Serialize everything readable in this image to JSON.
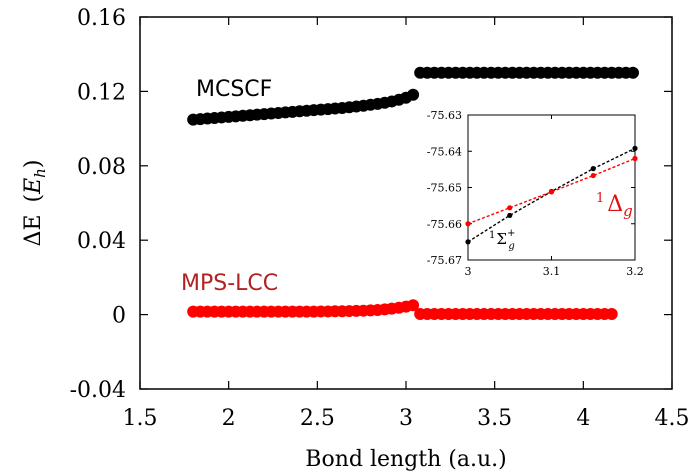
{
  "chart_data": [
    {
      "type": "scatter",
      "xlabel": "Bond length (a.u.)",
      "ylabel_text": "ΔE",
      "ylabel_unit_prefix": "(",
      "ylabel_unit": "E",
      "ylabel_unit_sub": "h",
      "ylabel_unit_suffix": ")",
      "xlim": [
        1.5,
        4.5
      ],
      "ylim": [
        -0.04,
        0.16
      ],
      "xticks": [
        1.5,
        2,
        2.5,
        3,
        3.5,
        4,
        4.5
      ],
      "xtick_labels": [
        "1.5",
        "2",
        "2.5",
        "3",
        "3.5",
        "4",
        "4.5"
      ],
      "yticks": [
        -0.04,
        0,
        0.04,
        0.08,
        0.12,
        0.16
      ],
      "ytick_labels": [
        "-0.04",
        "0",
        "0.04",
        "0.08",
        "0.12",
        "0.16"
      ],
      "series": [
        {
          "name": "MCSCF",
          "color": "#000000",
          "segments": [
            {
              "x": [
                1.8,
                1.84,
                1.88,
                1.92,
                1.96,
                2.0,
                2.04,
                2.08,
                2.12,
                2.16,
                2.2,
                2.24,
                2.28,
                2.32,
                2.36,
                2.4,
                2.44,
                2.48,
                2.52,
                2.56,
                2.6,
                2.64,
                2.68,
                2.72,
                2.76,
                2.8,
                2.84,
                2.88,
                2.92,
                2.96,
                3.0,
                3.04
              ],
              "y": [
                0.1048,
                0.1051,
                0.1054,
                0.1057,
                0.106,
                0.1063,
                0.1066,
                0.1069,
                0.1072,
                0.1075,
                0.1078,
                0.1081,
                0.1084,
                0.1087,
                0.109,
                0.1093,
                0.1096,
                0.1099,
                0.1102,
                0.1105,
                0.1108,
                0.1111,
                0.1115,
                0.1119,
                0.1123,
                0.1128,
                0.1133,
                0.1139,
                0.1146,
                0.1155,
                0.1166,
                0.1182
              ]
            },
            {
              "x": [
                3.08,
                3.12,
                3.16,
                3.2,
                3.24,
                3.28,
                3.32,
                3.36,
                3.4,
                3.44,
                3.48,
                3.52,
                3.56,
                3.6,
                3.64,
                3.68,
                3.72,
                3.76,
                3.8,
                3.84,
                3.88,
                3.92,
                3.96,
                4.0,
                4.04,
                4.08,
                4.12,
                4.16,
                4.2,
                4.24,
                4.28
              ],
              "y": [
                0.13,
                0.13,
                0.13,
                0.13,
                0.13,
                0.13,
                0.13,
                0.13,
                0.13,
                0.13,
                0.13,
                0.13,
                0.13,
                0.13,
                0.13,
                0.13,
                0.13,
                0.13,
                0.13,
                0.13,
                0.13,
                0.13,
                0.13,
                0.13,
                0.13,
                0.13,
                0.13,
                0.13,
                0.13,
                0.13,
                0.13
              ]
            }
          ]
        },
        {
          "name": "MPS-LCC",
          "color": "#ff0000",
          "label_color": "#b22222",
          "segments": [
            {
              "x": [
                1.8,
                1.84,
                1.88,
                1.92,
                1.96,
                2.0,
                2.04,
                2.08,
                2.12,
                2.16,
                2.2,
                2.24,
                2.28,
                2.32,
                2.36,
                2.4,
                2.44,
                2.48,
                2.52,
                2.56,
                2.6,
                2.64,
                2.68,
                2.72,
                2.76,
                2.8,
                2.84,
                2.88,
                2.92,
                2.96,
                3.0,
                3.04
              ],
              "y": [
                0.0016,
                0.0016,
                0.0016,
                0.0016,
                0.0016,
                0.0016,
                0.0016,
                0.0016,
                0.0016,
                0.0016,
                0.0016,
                0.0016,
                0.0016,
                0.0016,
                0.0016,
                0.0016,
                0.0016,
                0.0016,
                0.0017,
                0.0017,
                0.0018,
                0.0018,
                0.0019,
                0.002,
                0.0021,
                0.0023,
                0.0025,
                0.0028,
                0.0032,
                0.0037,
                0.0043,
                0.005
              ]
            },
            {
              "x": [
                3.08,
                3.12,
                3.16,
                3.2,
                3.24,
                3.28,
                3.32,
                3.36,
                3.4,
                3.44,
                3.48,
                3.52,
                3.56,
                3.6,
                3.64,
                3.68,
                3.72,
                3.76,
                3.8,
                3.84,
                3.88,
                3.92,
                3.96,
                4.0,
                4.04,
                4.08,
                4.12,
                4.16
              ],
              "y": [
                0.0003,
                0.0003,
                0.0003,
                0.0003,
                0.0003,
                0.0003,
                0.0003,
                0.0003,
                0.0003,
                0.0003,
                0.0003,
                0.0003,
                0.0003,
                0.0003,
                0.0003,
                0.0003,
                0.0003,
                0.0003,
                0.0003,
                0.0003,
                0.0003,
                0.0003,
                0.0003,
                0.0003,
                0.0003,
                0.0003,
                0.0003,
                0.0003
              ]
            }
          ]
        }
      ]
    },
    {
      "type": "line",
      "xlim": [
        3.0,
        3.2
      ],
      "ylim": [
        -75.67,
        -75.63
      ],
      "xticks": [
        3.0,
        3.1,
        3.2
      ],
      "xtick_labels": [
        "3",
        "3.1",
        "3.2"
      ],
      "yticks": [
        -75.67,
        -75.66,
        -75.65,
        -75.64,
        -75.63
      ],
      "ytick_labels": [
        "-75.67",
        "-75.66",
        "-75.65",
        "-75.64",
        "-75.63"
      ],
      "series": [
        {
          "name_base": "Σ",
          "name_pre_sup": "1",
          "name_sub": "g",
          "name_sup": "+",
          "color": "#000000",
          "dashed": true,
          "x": [
            3.0,
            3.05,
            3.1,
            3.15,
            3.2
          ],
          "y": [
            -75.665,
            -75.6577,
            -75.6511,
            -75.6448,
            -75.6392
          ]
        },
        {
          "name_base": "Δ",
          "name_pre_sup": "1",
          "name_sub": "g",
          "color": "#ff0000",
          "dashed": true,
          "x": [
            3.0,
            3.05,
            3.1,
            3.15,
            3.2
          ],
          "y": [
            -75.66,
            -75.6556,
            -75.6512,
            -75.6467,
            -75.642
          ]
        }
      ]
    }
  ]
}
